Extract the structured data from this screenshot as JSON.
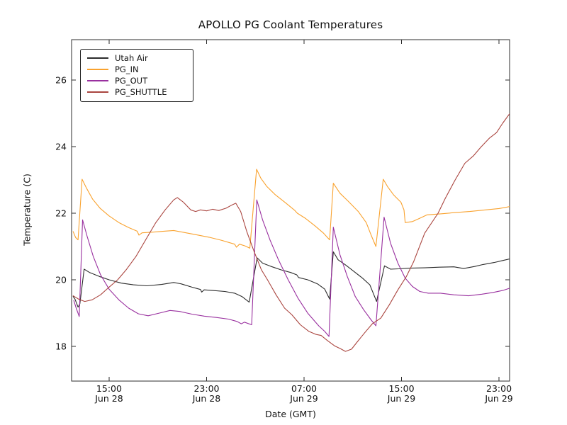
{
  "chart_data": {
    "type": "line",
    "title": "APOLLO PG Coolant Temperatures",
    "xlabel": "Date (GMT)",
    "ylabel": "Temperature (C)",
    "x_unit": "hours_since_Jun28_0000_GMT",
    "xlim": [
      11.92,
      47.87
    ],
    "ylim": [
      16.96,
      27.21
    ],
    "grid": false,
    "legend_position": "upper left",
    "background": "#ffffff",
    "axis_color": "#2e2e2e",
    "y_ticks": [
      18,
      20,
      22,
      24,
      26
    ],
    "x_ticks": [
      {
        "t": 15,
        "line1": "15:00",
        "line2": "Jun 28"
      },
      {
        "t": 23,
        "line1": "23:00",
        "line2": "Jun 28"
      },
      {
        "t": 31,
        "line1": "07:00",
        "line2": "Jun 29"
      },
      {
        "t": 39,
        "line1": "15:00",
        "line2": "Jun 29"
      },
      {
        "t": 47,
        "line1": "23:00",
        "line2": "Jun 29"
      }
    ],
    "series": [
      {
        "name": "Utah Air",
        "color": "#2b2b2b",
        "points": [
          [
            12.05,
            19.5
          ],
          [
            12.2,
            19.42
          ],
          [
            12.45,
            19.18
          ],
          [
            12.6,
            19.28
          ],
          [
            12.95,
            20.32
          ],
          [
            13.4,
            20.22
          ],
          [
            14.2,
            20.1
          ],
          [
            15,
            20.0
          ],
          [
            16,
            19.9
          ],
          [
            17,
            19.85
          ],
          [
            18.1,
            19.82
          ],
          [
            19.3,
            19.86
          ],
          [
            20.3,
            19.92
          ],
          [
            20.9,
            19.88
          ],
          [
            21.8,
            19.78
          ],
          [
            22.5,
            19.71
          ],
          [
            22.6,
            19.63
          ],
          [
            22.8,
            19.7
          ],
          [
            23.5,
            19.68
          ],
          [
            24.5,
            19.65
          ],
          [
            25.3,
            19.6
          ],
          [
            25.9,
            19.5
          ],
          [
            26.5,
            19.33
          ],
          [
            27.15,
            20.66
          ],
          [
            27.6,
            20.5
          ],
          [
            28.3,
            20.4
          ],
          [
            29.1,
            20.3
          ],
          [
            29.9,
            20.22
          ],
          [
            30.4,
            20.15
          ],
          [
            30.55,
            20.07
          ],
          [
            31.3,
            20.0
          ],
          [
            32.1,
            19.88
          ],
          [
            32.7,
            19.72
          ],
          [
            33.1,
            19.42
          ],
          [
            33.4,
            20.84
          ],
          [
            33.8,
            20.6
          ],
          [
            34.4,
            20.45
          ],
          [
            35.1,
            20.25
          ],
          [
            35.8,
            20.05
          ],
          [
            36.4,
            19.85
          ],
          [
            36.95,
            19.35
          ],
          [
            37.6,
            20.42
          ],
          [
            38.1,
            20.32
          ],
          [
            38.8,
            20.33
          ],
          [
            39.6,
            20.35
          ],
          [
            40.9,
            20.36
          ],
          [
            42.1,
            20.38
          ],
          [
            43.3,
            20.39
          ],
          [
            44.1,
            20.34
          ],
          [
            45,
            20.4
          ],
          [
            45.7,
            20.46
          ],
          [
            46.6,
            20.52
          ],
          [
            47.3,
            20.58
          ],
          [
            47.9,
            20.63
          ]
        ]
      },
      {
        "name": "PG_IN",
        "color": "#f9a22e",
        "points": [
          [
            12.05,
            21.45
          ],
          [
            12.25,
            21.27
          ],
          [
            12.45,
            21.2
          ],
          [
            12.78,
            23.02
          ],
          [
            13.15,
            22.75
          ],
          [
            13.65,
            22.42
          ],
          [
            14.25,
            22.15
          ],
          [
            15,
            21.92
          ],
          [
            15.8,
            21.72
          ],
          [
            16.6,
            21.57
          ],
          [
            17.3,
            21.46
          ],
          [
            17.45,
            21.34
          ],
          [
            17.7,
            21.41
          ],
          [
            18.5,
            21.43
          ],
          [
            19.5,
            21.46
          ],
          [
            20.3,
            21.48
          ],
          [
            21.2,
            21.42
          ],
          [
            22.2,
            21.35
          ],
          [
            23.2,
            21.28
          ],
          [
            24.2,
            21.19
          ],
          [
            25.3,
            21.07
          ],
          [
            25.45,
            20.98
          ],
          [
            25.7,
            21.07
          ],
          [
            26.15,
            21.02
          ],
          [
            26.55,
            20.95
          ],
          [
            27.1,
            23.32
          ],
          [
            27.45,
            23.05
          ],
          [
            27.95,
            22.8
          ],
          [
            28.65,
            22.55
          ],
          [
            29.45,
            22.32
          ],
          [
            30.25,
            22.08
          ],
          [
            30.45,
            22.0
          ],
          [
            31.1,
            21.85
          ],
          [
            31.9,
            21.62
          ],
          [
            32.6,
            21.4
          ],
          [
            33.1,
            21.2
          ],
          [
            33.4,
            22.9
          ],
          [
            33.95,
            22.6
          ],
          [
            34.65,
            22.35
          ],
          [
            35.45,
            22.05
          ],
          [
            36.1,
            21.72
          ],
          [
            36.5,
            21.35
          ],
          [
            36.9,
            21.0
          ],
          [
            37.5,
            23.02
          ],
          [
            37.85,
            22.8
          ],
          [
            38.35,
            22.55
          ],
          [
            38.95,
            22.33
          ],
          [
            39.2,
            22.1
          ],
          [
            39.3,
            21.72
          ],
          [
            39.9,
            21.75
          ],
          [
            40.5,
            21.85
          ],
          [
            41.1,
            21.95
          ],
          [
            42.2,
            21.98
          ],
          [
            43.4,
            22.02
          ],
          [
            44.6,
            22.05
          ],
          [
            45.9,
            22.1
          ],
          [
            47,
            22.14
          ],
          [
            47.9,
            22.2
          ]
        ]
      },
      {
        "name": "PG_OUT",
        "color": "#99309f",
        "points": [
          [
            12.1,
            19.38
          ],
          [
            12.3,
            19.15
          ],
          [
            12.55,
            18.9
          ],
          [
            12.82,
            21.8
          ],
          [
            13.2,
            21.3
          ],
          [
            13.7,
            20.7
          ],
          [
            14.3,
            20.15
          ],
          [
            15,
            19.72
          ],
          [
            15.8,
            19.4
          ],
          [
            16.6,
            19.15
          ],
          [
            17.4,
            18.98
          ],
          [
            18.2,
            18.92
          ],
          [
            19.1,
            19.0
          ],
          [
            20,
            19.08
          ],
          [
            20.8,
            19.05
          ],
          [
            21.8,
            18.97
          ],
          [
            22.8,
            18.91
          ],
          [
            23.8,
            18.87
          ],
          [
            24.8,
            18.82
          ],
          [
            25.5,
            18.75
          ],
          [
            25.85,
            18.68
          ],
          [
            26.1,
            18.73
          ],
          [
            26.7,
            18.65
          ],
          [
            27.12,
            22.4
          ],
          [
            27.6,
            21.8
          ],
          [
            28.2,
            21.2
          ],
          [
            28.9,
            20.6
          ],
          [
            29.7,
            20.0
          ],
          [
            30.5,
            19.45
          ],
          [
            31.3,
            19.0
          ],
          [
            32.2,
            18.62
          ],
          [
            32.7,
            18.45
          ],
          [
            33.05,
            18.3
          ],
          [
            33.4,
            21.58
          ],
          [
            33.95,
            20.75
          ],
          [
            34.55,
            20.1
          ],
          [
            35.2,
            19.5
          ],
          [
            35.9,
            19.1
          ],
          [
            36.5,
            18.8
          ],
          [
            36.9,
            18.62
          ],
          [
            37.57,
            21.88
          ],
          [
            38.1,
            21.1
          ],
          [
            38.7,
            20.5
          ],
          [
            39.3,
            20.05
          ],
          [
            39.9,
            19.8
          ],
          [
            40.5,
            19.65
          ],
          [
            41.2,
            19.6
          ],
          [
            42.2,
            19.6
          ],
          [
            43.3,
            19.55
          ],
          [
            44.5,
            19.52
          ],
          [
            45.6,
            19.57
          ],
          [
            46.5,
            19.62
          ],
          [
            47.3,
            19.68
          ],
          [
            47.9,
            19.75
          ]
        ]
      },
      {
        "name": "PG_SHUTTLE",
        "color": "#aa453f",
        "points": [
          [
            12.05,
            19.52
          ],
          [
            12.5,
            19.42
          ],
          [
            13,
            19.35
          ],
          [
            13.6,
            19.4
          ],
          [
            14.3,
            19.55
          ],
          [
            15,
            19.78
          ],
          [
            15.7,
            20.0
          ],
          [
            16.4,
            20.3
          ],
          [
            17.2,
            20.7
          ],
          [
            18,
            21.2
          ],
          [
            18.8,
            21.7
          ],
          [
            19.6,
            22.1
          ],
          [
            20.3,
            22.4
          ],
          [
            20.6,
            22.47
          ],
          [
            21.1,
            22.33
          ],
          [
            21.7,
            22.1
          ],
          [
            22.1,
            22.05
          ],
          [
            22.5,
            22.1
          ],
          [
            23,
            22.07
          ],
          [
            23.5,
            22.12
          ],
          [
            24,
            22.08
          ],
          [
            24.6,
            22.15
          ],
          [
            25.1,
            22.25
          ],
          [
            25.4,
            22.3
          ],
          [
            25.8,
            22.05
          ],
          [
            26.3,
            21.45
          ],
          [
            26.9,
            20.85
          ],
          [
            27.5,
            20.3
          ],
          [
            28,
            20.0
          ],
          [
            28.7,
            19.55
          ],
          [
            29.4,
            19.15
          ],
          [
            30,
            18.95
          ],
          [
            30.7,
            18.65
          ],
          [
            31.4,
            18.45
          ],
          [
            32,
            18.36
          ],
          [
            32.4,
            18.33
          ],
          [
            32.9,
            18.18
          ],
          [
            33.5,
            18.02
          ],
          [
            34,
            17.93
          ],
          [
            34.4,
            17.85
          ],
          [
            34.9,
            17.92
          ],
          [
            35.4,
            18.15
          ],
          [
            35.95,
            18.4
          ],
          [
            36.6,
            18.68
          ],
          [
            37.3,
            18.85
          ],
          [
            38,
            19.25
          ],
          [
            38.7,
            19.7
          ],
          [
            39.4,
            20.1
          ],
          [
            40,
            20.55
          ],
          [
            40.9,
            21.4
          ],
          [
            42,
            22.0
          ],
          [
            42.6,
            22.45
          ],
          [
            43.4,
            23.0
          ],
          [
            44.2,
            23.5
          ],
          [
            44.9,
            23.72
          ],
          [
            45.5,
            23.98
          ],
          [
            46.2,
            24.25
          ],
          [
            46.8,
            24.42
          ],
          [
            47.3,
            24.7
          ],
          [
            47.9,
            25.0
          ]
        ]
      }
    ]
  }
}
